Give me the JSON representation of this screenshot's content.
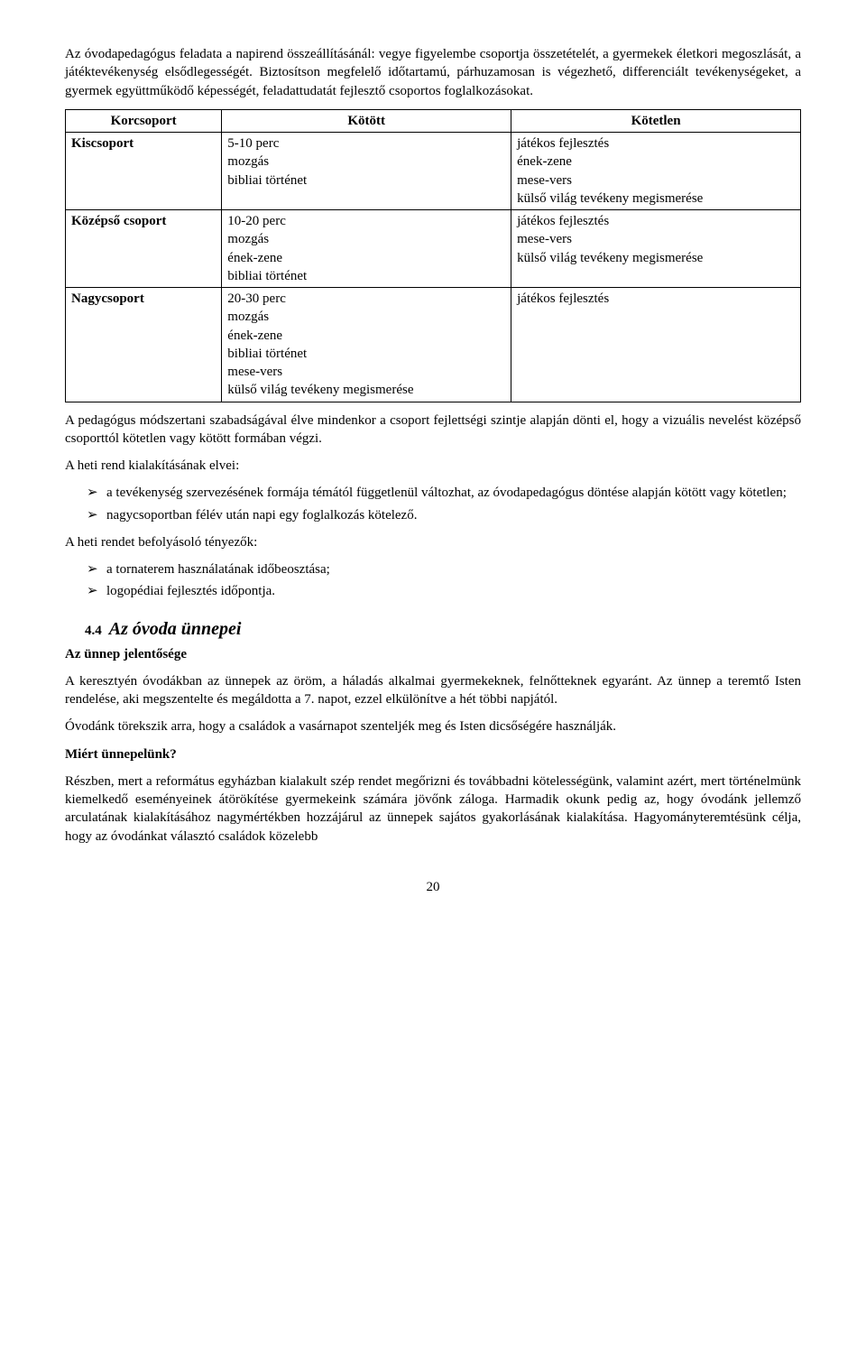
{
  "intro": {
    "p1": "Az óvodapedagógus feladata a napirend összeállításánál: vegye figyelembe csoportja összetételét, a gyermekek életkori megoszlását, a játéktevékenység elsődlegességét. Biztosítson megfelelő időtartamú, párhuzamosan is végezhető, differenciált tevékenységeket, a gyermek együttműködő képességét, feladattudatát fejlesztő csoportos foglalkozásokat."
  },
  "table": {
    "headers": {
      "c0": "Korcsoport",
      "c1": "Kötött",
      "c2": "Kötetlen"
    },
    "rows": [
      {
        "label": "Kiscsoport",
        "kotott": "5-10 perc\nmozgás\nbibliai történet",
        "kotetlen": "játékos fejlesztés\nének-zene\nmese-vers\nkülső világ tevékeny megismerése"
      },
      {
        "label": "Középső csoport",
        "kotott": "10-20 perc\nmozgás\nének-zene\nbibliai történet",
        "kotetlen": "játékos fejlesztés\nmese-vers\nkülső világ tevékeny megismerése"
      },
      {
        "label": "Nagycsoport",
        "kotott": "20-30 perc\nmozgás\nének-zene\nbibliai történet\nmese-vers\nkülső világ tevékeny megismerése",
        "kotetlen": "játékos fejlesztés"
      }
    ]
  },
  "after_table": {
    "p1": "A pedagógus módszertani szabadságával élve mindenkor a csoport fejlettségi szintje alapján dönti el, hogy a vizuális nevelést középső csoporttól kötetlen vagy kötött formában végzi.",
    "p2": "A heti rend kialakításának elvei:",
    "bullets1": [
      "a tevékenység szervezésének formája témától függetlenül változhat, az óvodapedagógus döntése alapján kötött vagy kötetlen;",
      "nagycsoportban félév után napi egy foglalkozás kötelező."
    ],
    "p3": "A heti rendet befolyásoló tényezők:",
    "bullets2": [
      "a tornaterem használatának időbeosztása;",
      "logopédiai fejlesztés időpontja."
    ]
  },
  "section": {
    "num": "4.4",
    "title": "Az óvoda ünnepei",
    "sub": "Az ünnep jelentősége",
    "p1": "A keresztyén óvodákban az ünnepek az öröm, a háladás alkalmai gyermekeknek, felnőtteknek egyaránt. Az ünnep a teremtő Isten rendelése, aki megszentelte és megáldotta a 7. napot, ezzel elkülönítve a hét többi napjától.",
    "p2": "Óvodánk törekszik arra, hogy a családok a vasárnapot szenteljék meg és Isten dicsőségére használják.",
    "q": "Miért ünnepelünk?",
    "p3": "Részben, mert a református egyházban kialakult szép rendet megőrizni és továbbadni kötelességünk, valamint azért, mert történelmünk kiemelkedő eseményeinek átörökítése gyermekeink számára jövőnk záloga. Harmadik okunk pedig az, hogy óvodánk jellemző arculatának kialakításához nagymértékben hozzájárul az ünnepek sajátos gyakorlásának kialakítása. Hagyományteremtésünk célja, hogy az óvodánkat választó családok közelebb"
  },
  "page": "20"
}
